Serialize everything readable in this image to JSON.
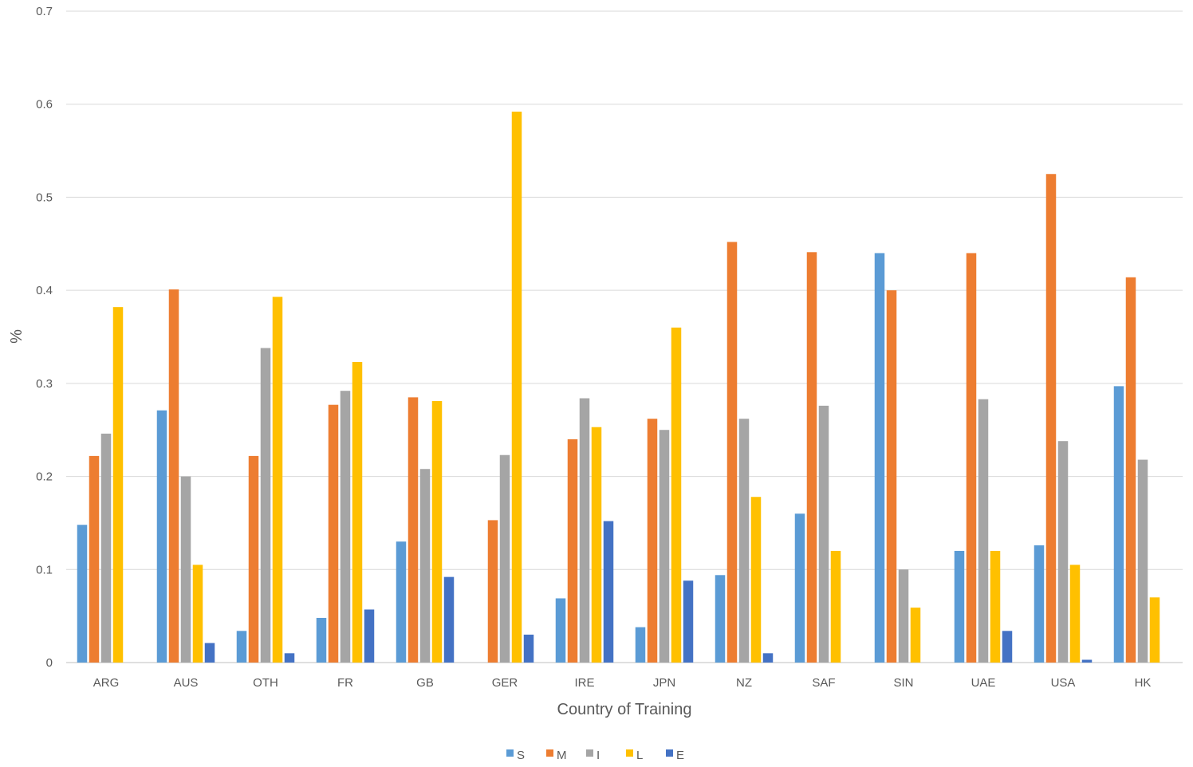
{
  "chart_data": {
    "type": "bar",
    "title": "",
    "xlabel": "Country of Training",
    "ylabel": "%",
    "ylim": [
      0,
      0.7
    ],
    "yticks": [
      "0",
      "0.1",
      "0.2",
      "0.3",
      "0.4",
      "0.5",
      "0.6",
      "0.7"
    ],
    "grid": true,
    "legend_position": "bottom",
    "categories": [
      "ARG",
      "AUS",
      "OTH",
      "FR",
      "GB",
      "GER",
      "IRE",
      "JPN",
      "NZ",
      "SAF",
      "SIN",
      "UAE",
      "USA",
      "HK"
    ],
    "series": [
      {
        "name": "S",
        "color": "#5B9BD5",
        "values": [
          0.148,
          0.271,
          0.034,
          0.048,
          0.13,
          0.0,
          0.069,
          0.038,
          0.094,
          0.16,
          0.44,
          0.12,
          0.126,
          0.297
        ]
      },
      {
        "name": "M",
        "color": "#ED7D31",
        "values": [
          0.222,
          0.401,
          0.222,
          0.277,
          0.285,
          0.153,
          0.24,
          0.262,
          0.452,
          0.441,
          0.4,
          0.44,
          0.525,
          0.414
        ]
      },
      {
        "name": "I",
        "color": "#A5A5A5",
        "values": [
          0.246,
          0.2,
          0.338,
          0.292,
          0.208,
          0.223,
          0.284,
          0.25,
          0.262,
          0.276,
          0.1,
          0.283,
          0.238,
          0.218
        ]
      },
      {
        "name": "L",
        "color": "#FFC000",
        "values": [
          0.382,
          0.105,
          0.393,
          0.323,
          0.281,
          0.592,
          0.253,
          0.36,
          0.178,
          0.12,
          0.059,
          0.12,
          0.105,
          0.07
        ]
      },
      {
        "name": "E",
        "color": "#4472C4",
        "values": [
          0.0,
          0.021,
          0.01,
          0.057,
          0.092,
          0.03,
          0.152,
          0.088,
          0.01,
          0.0,
          0.0,
          0.034,
          0.003,
          0.0
        ]
      }
    ]
  }
}
